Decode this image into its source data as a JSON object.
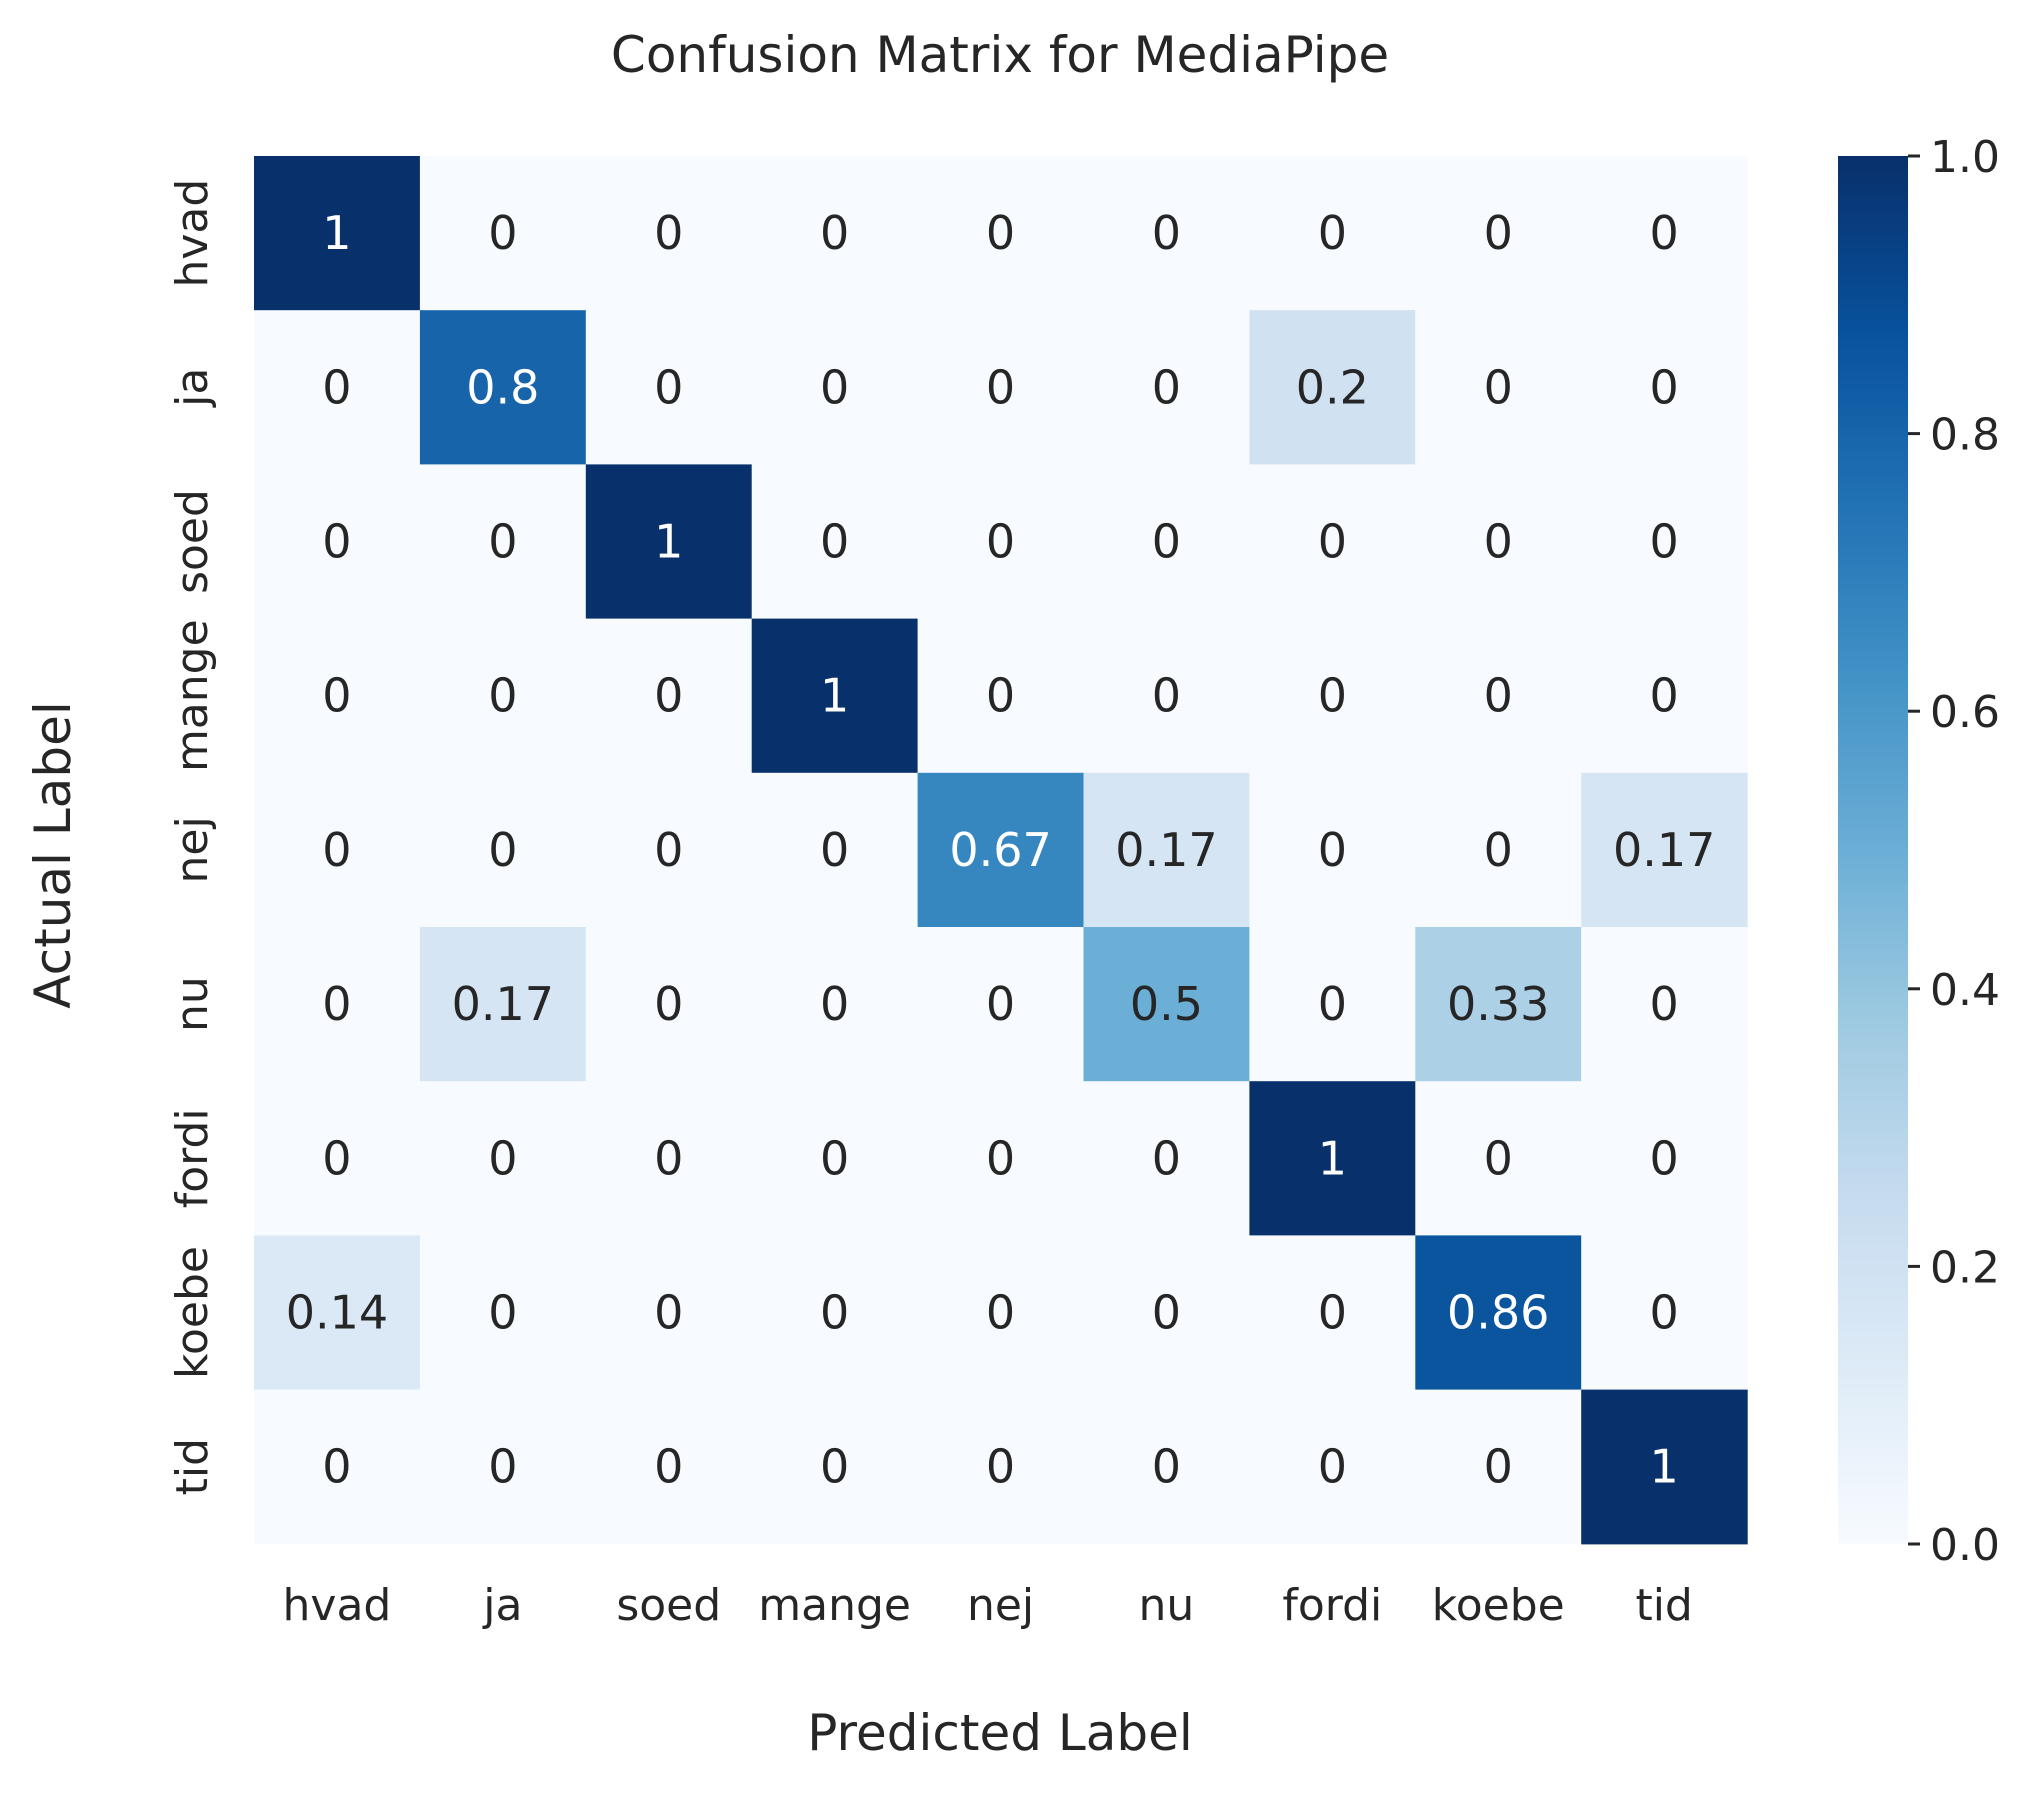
{
  "chart_data": {
    "type": "heatmap",
    "title": "Confusion Matrix for MediaPipe",
    "xlabel": "Predicted Label",
    "ylabel": "Actual Label",
    "x_categories": [
      "hvad",
      "ja",
      "soed",
      "mange",
      "nej",
      "nu",
      "fordi",
      "koebe",
      "tid"
    ],
    "y_categories": [
      "hvad",
      "ja",
      "soed",
      "mange",
      "nej",
      "nu",
      "fordi",
      "koebe",
      "tid"
    ],
    "values": [
      [
        1,
        0,
        0,
        0,
        0,
        0,
        0,
        0,
        0
      ],
      [
        0,
        0.8,
        0,
        0,
        0,
        0,
        0.2,
        0,
        0
      ],
      [
        0,
        0,
        1,
        0,
        0,
        0,
        0,
        0,
        0
      ],
      [
        0,
        0,
        0,
        1,
        0,
        0,
        0,
        0,
        0
      ],
      [
        0,
        0,
        0,
        0,
        0.67,
        0.17,
        0,
        0,
        0.17
      ],
      [
        0,
        0.17,
        0,
        0,
        0,
        0.5,
        0,
        0.33,
        0
      ],
      [
        0,
        0,
        0,
        0,
        0,
        0,
        1,
        0,
        0
      ],
      [
        0.14,
        0,
        0,
        0,
        0,
        0,
        0,
        0.86,
        0
      ],
      [
        0,
        0,
        0,
        0,
        0,
        0,
        0,
        0,
        1
      ]
    ],
    "colorbar": {
      "range": [
        0,
        1
      ],
      "ticks": [
        "0.0",
        "0.2",
        "0.4",
        "0.6",
        "0.8",
        "1.0"
      ],
      "colormap": "Blues"
    }
  }
}
